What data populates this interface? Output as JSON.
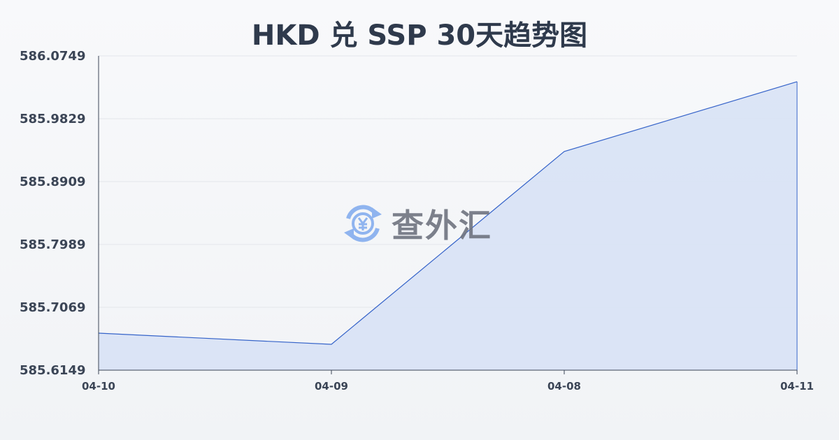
{
  "chart_data": {
    "type": "area",
    "title": "HKD 兑 SSP 30天趋势图",
    "categories": [
      "04-10",
      "04-09",
      "04-08",
      "04-11"
    ],
    "values": [
      585.6691,
      585.6527,
      585.9349,
      586.0371
    ],
    "ylim": [
      585.6149,
      586.0749
    ],
    "yticks": [
      "586.0749",
      "585.9829",
      "585.8909",
      "585.7989",
      "585.7069",
      "585.6149"
    ],
    "grid": true,
    "colors": {
      "line": "#3563c9",
      "fill": "#d8e2f5"
    }
  },
  "watermark": {
    "text": "查外汇",
    "icon": "yen-exchange-icon"
  }
}
